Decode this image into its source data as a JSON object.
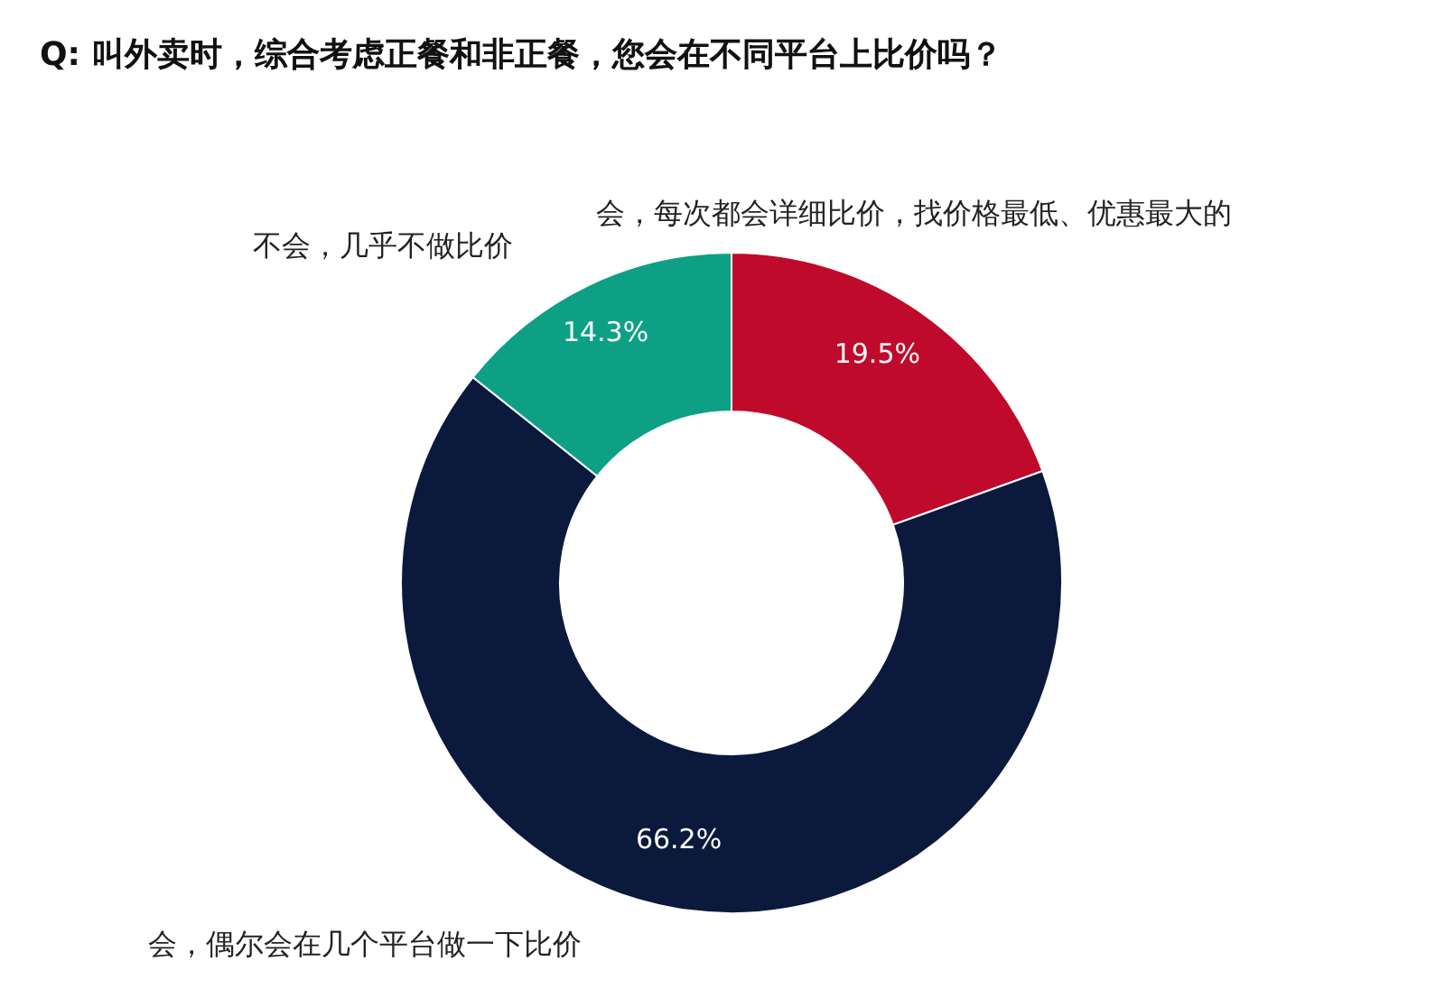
{
  "chart_data": {
    "type": "donut",
    "title": "Q: 叫外卖时，综合考虑正餐和非正餐，您会在不同平台上比价吗？",
    "categories": [
      "会，每次都会详细比价，找价格最低、优惠最大的",
      "会，偶尔会在几个平台做一下比价",
      "不会，几乎不做比价"
    ],
    "values": [
      19.5,
      66.2,
      14.3
    ],
    "colors": [
      "#c00a2c",
      "#0b193c",
      "#0ea085"
    ],
    "value_labels": [
      "19.5%",
      "66.2%",
      "14.3%"
    ]
  }
}
